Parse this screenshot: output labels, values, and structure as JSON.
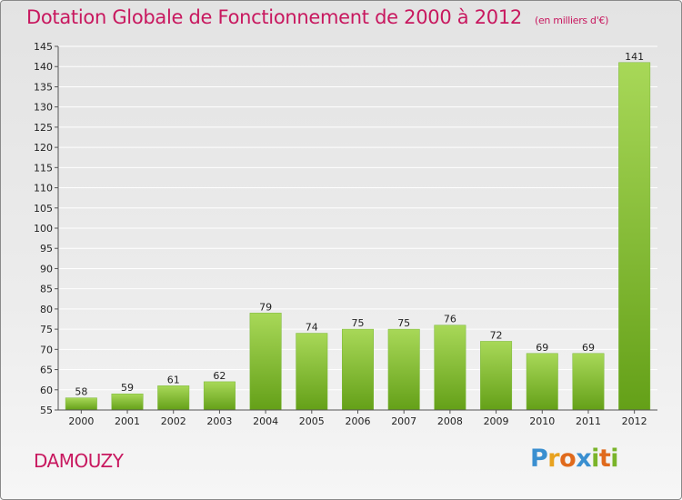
{
  "header": {
    "title": "Dotation Globale de Fonctionnement de 2000 à 2012",
    "subtitle": "(en milliers d'€)"
  },
  "commune": "DAMOUZY",
  "brand": {
    "letters": [
      "P",
      "r",
      "o",
      "x",
      "i",
      "t",
      "i"
    ],
    "colors": [
      "#3a8fd0",
      "#e8a21f",
      "#e06a1c",
      "#3a8fd0",
      "#7ab42a",
      "#e06a1c",
      "#7ab42a"
    ]
  },
  "colors": {
    "title": "#c8185f",
    "bar_light": "#a8d858",
    "bar_dark": "#64a018",
    "grid": "#ffffff",
    "text": "#222222"
  },
  "chart_data": {
    "type": "bar",
    "categories": [
      "2000",
      "2001",
      "2002",
      "2003",
      "2004",
      "2005",
      "2006",
      "2007",
      "2008",
      "2009",
      "2010",
      "2011",
      "2012"
    ],
    "values": [
      58,
      59,
      61,
      62,
      79,
      74,
      75,
      75,
      76,
      72,
      69,
      69,
      141
    ],
    "ylim": [
      55,
      145
    ],
    "yticks": [
      55,
      60,
      65,
      70,
      75,
      80,
      85,
      90,
      95,
      100,
      105,
      110,
      115,
      120,
      125,
      130,
      135,
      140,
      145
    ],
    "grid": true,
    "data_labels": true
  }
}
